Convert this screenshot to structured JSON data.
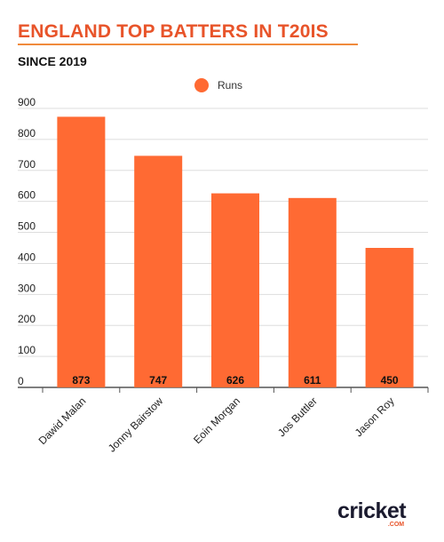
{
  "header": {
    "title": "ENGLAND TOP BATTERS IN T20IS",
    "subtitle": "SINCE 2019"
  },
  "brand": {
    "name": "cricket",
    "suffix": ".COM"
  },
  "colors": {
    "title": "#e8542a",
    "bar": "#ff6a33",
    "grid": "#dddddd"
  },
  "chart_data": {
    "type": "bar",
    "title": "ENGLAND TOP BATTERS IN T20IS",
    "subtitle": "SINCE 2019",
    "categories": [
      "Dawid Malan",
      "Jonny Bairstow",
      "Eoin Morgan",
      "Jos Buttler",
      "Jason Roy"
    ],
    "series": [
      {
        "name": "Runs",
        "values": [
          873,
          747,
          626,
          611,
          450
        ]
      }
    ],
    "yticks": [
      0,
      100,
      200,
      300,
      400,
      500,
      600,
      700,
      800,
      900
    ],
    "ylim": [
      0,
      900
    ],
    "grid": true,
    "legend": "top-center",
    "data_labels": true
  }
}
